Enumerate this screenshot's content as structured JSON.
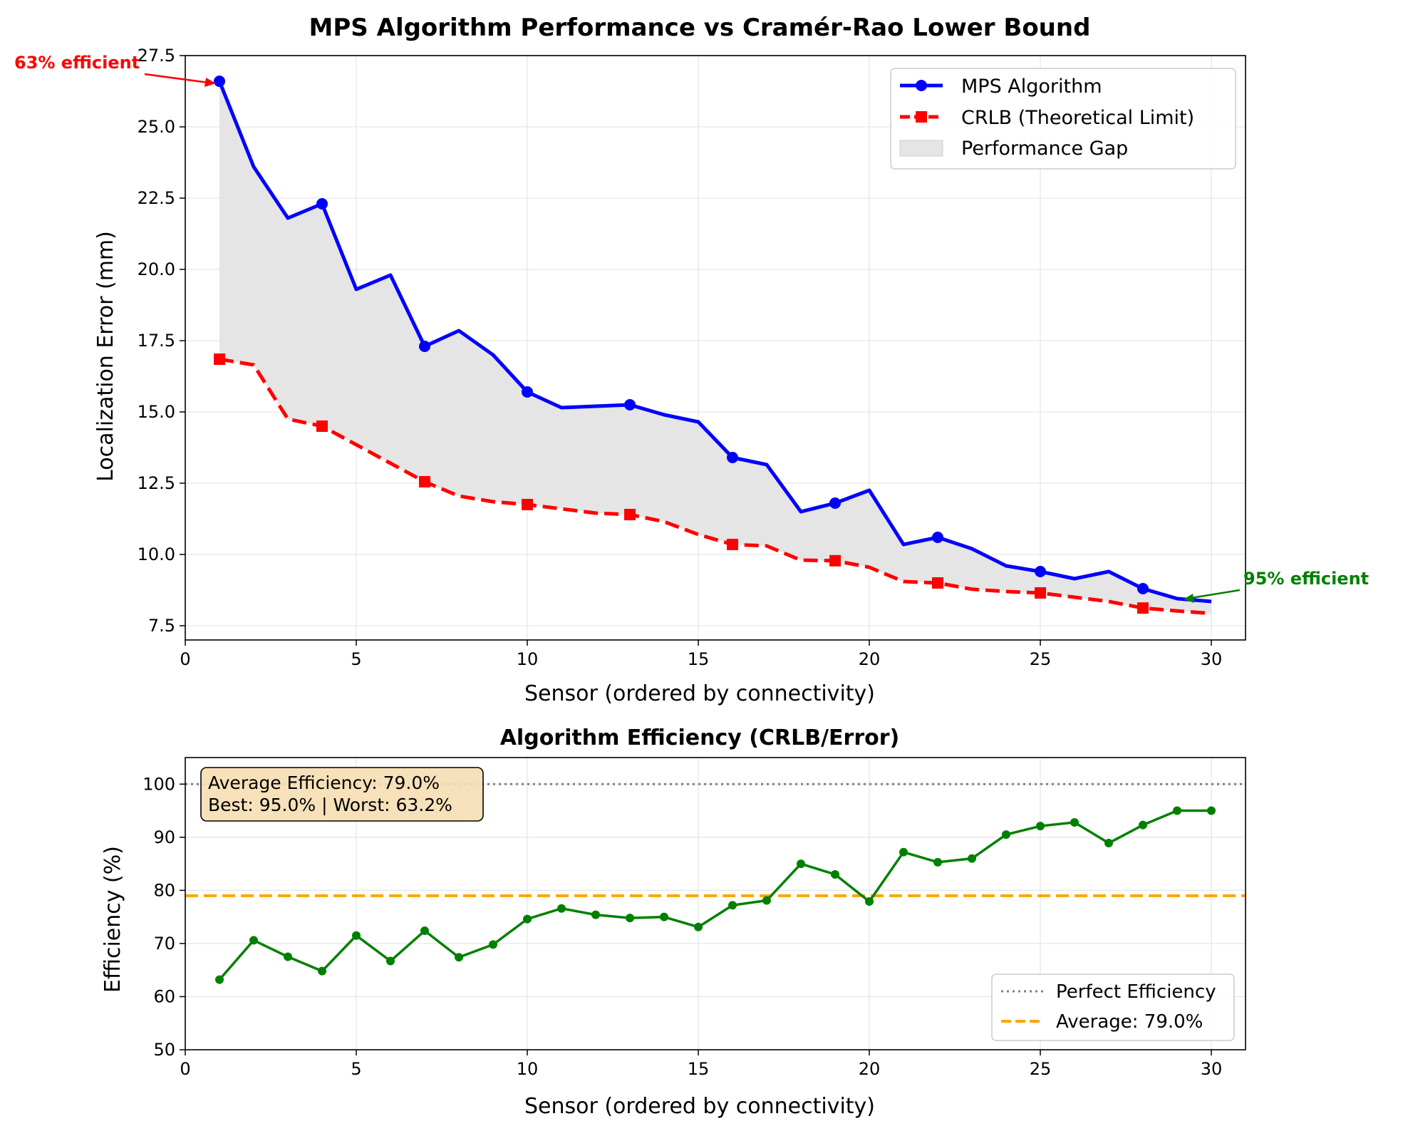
{
  "chart_data": [
    {
      "type": "line",
      "title": "MPS Algorithm Performance vs Cramér-Rao Lower Bound",
      "xlabel": "Sensor (ordered by connectivity)",
      "ylabel": "Localization Error (mm)",
      "xlim": [
        0,
        31
      ],
      "ylim": [
        7.0,
        27.5
      ],
      "xticks": [
        0,
        5,
        10,
        15,
        20,
        25,
        30
      ],
      "yticks": [
        7.5,
        10.0,
        12.5,
        15.0,
        17.5,
        20.0,
        22.5,
        25.0,
        27.5
      ],
      "grid": true,
      "legend_position": "top-right",
      "x": [
        1,
        2,
        3,
        4,
        5,
        6,
        7,
        8,
        9,
        10,
        11,
        12,
        13,
        14,
        15,
        16,
        17,
        18,
        19,
        20,
        21,
        22,
        23,
        24,
        25,
        26,
        27,
        28,
        29,
        30
      ],
      "series": [
        {
          "name": "MPS Algorithm",
          "color": "#0000ff",
          "line": "solid",
          "marker": "circle",
          "marker_every": 3,
          "values": [
            26.6,
            23.6,
            21.8,
            22.3,
            19.3,
            19.8,
            17.3,
            17.85,
            17.0,
            15.7,
            15.15,
            15.2,
            15.25,
            14.9,
            14.65,
            13.4,
            13.15,
            11.5,
            11.8,
            12.25,
            10.35,
            10.6,
            10.2,
            9.6,
            9.4,
            9.15,
            9.4,
            8.8,
            8.45,
            8.35
          ]
        },
        {
          "name": "CRLB (Theoretical Limit)",
          "color": "#ff0000",
          "line": "dashed",
          "marker": "square",
          "marker_every": 3,
          "values": [
            16.85,
            16.65,
            14.75,
            14.5,
            13.85,
            13.2,
            12.55,
            12.05,
            11.85,
            11.75,
            11.6,
            11.45,
            11.4,
            11.15,
            10.7,
            10.35,
            10.3,
            9.8,
            9.78,
            9.55,
            9.05,
            9.0,
            8.78,
            8.7,
            8.65,
            8.5,
            8.35,
            8.12,
            8.02,
            7.93
          ]
        }
      ],
      "fill": {
        "name": "Performance Gap",
        "color": "#e5e5e5"
      },
      "annotations": [
        {
          "text": "63% efficient",
          "color": "#ff0000",
          "x": 1,
          "y": 26.6
        },
        {
          "text": "95% efficient",
          "color": "#008000",
          "x": 29,
          "y": 8.45
        }
      ]
    },
    {
      "type": "line",
      "title": "Algorithm Efficiency (CRLB/Error)",
      "xlabel": "Sensor (ordered by connectivity)",
      "ylabel": "Efficiency (%)",
      "xlim": [
        0,
        31
      ],
      "ylim": [
        50,
        105
      ],
      "xticks": [
        0,
        5,
        10,
        15,
        20,
        25,
        30
      ],
      "yticks": [
        50,
        60,
        70,
        80,
        90,
        100
      ],
      "grid": true,
      "legend_position": "bottom-right",
      "x": [
        1,
        2,
        3,
        4,
        5,
        6,
        7,
        8,
        9,
        10,
        11,
        12,
        13,
        14,
        15,
        16,
        17,
        18,
        19,
        20,
        21,
        22,
        23,
        24,
        25,
        26,
        27,
        28,
        29,
        30
      ],
      "series": [
        {
          "name": "",
          "color": "#008000",
          "line": "solid",
          "marker": "circle",
          "values": [
            63.2,
            70.6,
            67.5,
            64.8,
            71.5,
            66.7,
            72.4,
            67.4,
            69.8,
            74.6,
            76.6,
            75.4,
            74.8,
            75.0,
            73.1,
            77.2,
            78.1,
            85.0,
            83.0,
            77.9,
            87.2,
            85.3,
            86.0,
            90.5,
            92.1,
            92.8,
            88.9,
            92.3,
            95.0,
            95.0
          ]
        }
      ],
      "reference_lines": [
        {
          "name": "Perfect Efficiency",
          "y": 100,
          "color": "#808080",
          "line": "dotted"
        },
        {
          "name": "Average: 79.0%",
          "y": 79.0,
          "color": "#ffa500",
          "line": "dashed"
        }
      ],
      "info_box": {
        "line1": "Average Efficiency: 79.0%",
        "line2": "Best: 95.0% | Worst: 63.2%"
      }
    }
  ]
}
